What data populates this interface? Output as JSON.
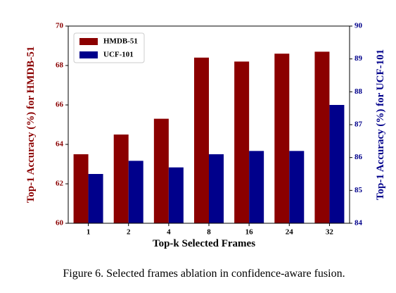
{
  "chart_data": {
    "type": "bar",
    "xlabel": "Top-k Selected Frames",
    "ylabel": "Top-1 Accuracy (%) for HMDB-51",
    "y2label": "Top-1 Accuracy (%) for UCF-101",
    "caption": "Figure 6. Selected frames ablation in confidence-aware fusion.",
    "categories": [
      "1",
      "2",
      "4",
      "8",
      "16",
      "24",
      "32"
    ],
    "series": [
      {
        "name": "HMDB-51",
        "color": "#8b0000",
        "values": [
          63.5,
          64.5,
          65.3,
          68.4,
          68.2,
          68.6,
          68.7
        ]
      },
      {
        "name": "UCF-101",
        "color": "#00008b",
        "axis": "y2",
        "values": [
          85.5,
          85.9,
          85.7,
          86.1,
          86.2,
          86.2,
          87.6
        ]
      }
    ],
    "ylim": [
      60,
      70
    ],
    "yticks": [
      60,
      62,
      64,
      66,
      68,
      70
    ],
    "y2lim": [
      84,
      90
    ],
    "y2ticks": [
      84,
      85,
      86,
      87,
      88,
      89,
      90
    ],
    "legend": "upper left"
  }
}
